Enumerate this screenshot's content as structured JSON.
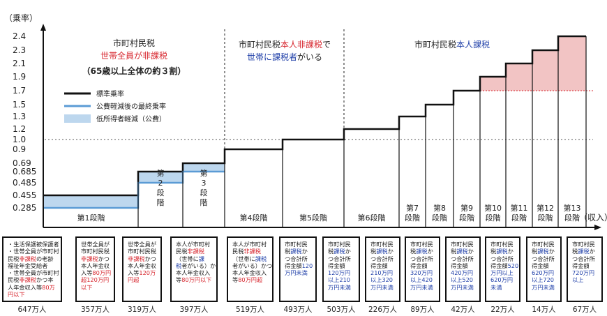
{
  "chart_data": {
    "type": "step",
    "ylabel": "（乗率）",
    "xlabel": "（収入）",
    "y_ticks": [
      "2.4",
      "2.3",
      "2.1",
      "1.9",
      "1.7",
      "1.5",
      "1.3",
      "1.2",
      "1.0",
      "0.9",
      "0.69",
      "0.685",
      "0.485",
      "0.455",
      "0.285"
    ],
    "stages": [
      {
        "label": "第1段階",
        "rate": 0.455,
        "reduced": 0.285,
        "count": "647万人"
      },
      {
        "label": "第\n2\n段\n階",
        "rate": 0.685,
        "reduced": 0.485,
        "count": "357万人"
      },
      {
        "label": "第\n3\n段\n階",
        "rate": 0.69,
        "reduced": 0.685,
        "count": "319万人"
      },
      {
        "label": "第4段階",
        "rate": 0.9,
        "count": "397万人"
      },
      {
        "label": "第5段階",
        "rate": 1.0,
        "count": "519万人"
      },
      {
        "label": "第6段階",
        "rate": 1.2,
        "count": "493万人"
      },
      {
        "label": "第7\n段階",
        "rate": 1.3,
        "count": "503万人"
      },
      {
        "label": "第8\n段階",
        "rate": 1.5,
        "count": "226万人"
      },
      {
        "label": "第9\n段階",
        "rate": 1.7,
        "count": "89万人"
      },
      {
        "label": "第10\n段階",
        "rate": 1.9,
        "count": "42万人"
      },
      {
        "label": "第11\n段階",
        "rate": 2.1,
        "count": "22万人"
      },
      {
        "label": "第12\n段階",
        "rate": 2.3,
        "count": "14万人"
      },
      {
        "label": "第13\n段階",
        "rate": 2.4,
        "count": "67万人"
      }
    ],
    "legend": [
      {
        "label": "標準乗率",
        "color": "#111111"
      },
      {
        "label": "公費軽減後の最終乗率",
        "color": "#5b9bd5"
      },
      {
        "label": "低所得者軽減（公費）",
        "color": "#bdd7ee"
      }
    ],
    "zones": [
      {
        "line1": "市町村民税",
        "line2": "世帯全員が非課税",
        "line3": "（65歳以上全体の約３割）"
      },
      {
        "line1a": "市町村民税",
        "line1b": "本人非課税",
        "line1c": "で",
        "line2a": "世帯に課税者",
        "line2b": "がいる"
      },
      {
        "line1a": "市町村民税",
        "line1b": "本人課税"
      }
    ],
    "colors": {
      "axis": "#111111",
      "high_band": "#f2c4c4",
      "high_band_edge": "#d7262e",
      "reduced_line": "#5b9bd5",
      "reduced_fill": "#bdd7ee"
    }
  },
  "boxes": [
    [
      [
        "・生活保護被保護者",
        "text"
      ],
      [
        "・世帯全員が市町村",
        "text"
      ],
      [
        "民税",
        "text",
        "非課税",
        "red",
        "の老齢",
        "text"
      ],
      [
        "福祉年金受給者",
        "text"
      ],
      [
        "・世帯全員が市町村",
        "text"
      ],
      [
        "民税",
        "text",
        "非課税",
        "red",
        "かつ本",
        "text"
      ],
      [
        "人年金収入等",
        "text",
        "80万",
        "red"
      ],
      [
        "円以下",
        "red"
      ]
    ],
    [
      [
        "世帯全員が",
        "text"
      ],
      [
        "市町村民税",
        "text"
      ],
      [
        "非課税",
        "red",
        "かつ",
        "text"
      ],
      [
        "本人年金収",
        "text"
      ],
      [
        "入等",
        "text",
        "80万円",
        "red"
      ],
      [
        "超120万円",
        "red"
      ],
      [
        "以下",
        "red"
      ]
    ],
    [
      [
        "世帯全員が",
        "text"
      ],
      [
        "市町村民税",
        "text"
      ],
      [
        "非課税",
        "red",
        "かつ",
        "text"
      ],
      [
        "本人年金収",
        "text"
      ],
      [
        "入等",
        "text",
        "120万",
        "red"
      ],
      [
        "円超",
        "red"
      ]
    ],
    [
      [
        "本人が市町村",
        "text"
      ],
      [
        "民税",
        "text",
        "非課税",
        "red"
      ],
      [
        "（世帯に",
        "text",
        "課",
        "blue"
      ],
      [
        "税",
        "blue",
        "者がいる）かつ",
        "text"
      ],
      [
        "本人年金収入",
        "text"
      ],
      [
        "等",
        "text",
        "80万円以下",
        "red"
      ]
    ],
    [
      [
        "本人が市町村",
        "text"
      ],
      [
        "民税",
        "text",
        "非課税",
        "red"
      ],
      [
        "（世帯に",
        "text",
        "課税",
        "blue"
      ],
      [
        "者がいる）",
        "text",
        "かつ",
        "text"
      ],
      [
        "本人年金収入",
        "text"
      ],
      [
        "等",
        "text",
        "80万円超",
        "red"
      ]
    ],
    [
      [
        "市町村民",
        "text"
      ],
      [
        "税",
        "text",
        "課税",
        "blue",
        "か",
        "text"
      ],
      [
        "つ合計所",
        "text"
      ],
      [
        "得金額",
        "text",
        "120",
        "blue"
      ],
      [
        "万円未満",
        "blue"
      ]
    ],
    [
      [
        "市町村民",
        "text"
      ],
      [
        "税",
        "text",
        "課税",
        "blue",
        "か",
        "text"
      ],
      [
        "つ合計所",
        "text"
      ],
      [
        "得金額",
        "text"
      ],
      [
        "120万円",
        "blue"
      ],
      [
        "以上210",
        "blue"
      ],
      [
        "万円未満",
        "blue"
      ]
    ],
    [
      [
        "市町村民",
        "text"
      ],
      [
        "税",
        "text",
        "課税",
        "blue",
        "か",
        "text"
      ],
      [
        "つ合計所",
        "text"
      ],
      [
        "得金額",
        "text"
      ],
      [
        "210万円",
        "blue"
      ],
      [
        "以上320",
        "blue"
      ],
      [
        "万円未満",
        "blue"
      ]
    ],
    [
      [
        "市町村民",
        "text"
      ],
      [
        "税",
        "text",
        "課税",
        "blue",
        "か",
        "text"
      ],
      [
        "つ合計所",
        "text"
      ],
      [
        "得金額",
        "text"
      ],
      [
        "320万円",
        "blue"
      ],
      [
        "以上420",
        "blue"
      ],
      [
        "万円未満",
        "blue"
      ]
    ],
    [
      [
        "市町村民",
        "text"
      ],
      [
        "税",
        "text",
        "課税",
        "blue",
        "か",
        "text"
      ],
      [
        "つ合計所",
        "text"
      ],
      [
        "得金額",
        "text"
      ],
      [
        "420万円",
        "blue"
      ],
      [
        "以上520",
        "blue"
      ],
      [
        "万円未満",
        "blue"
      ]
    ],
    [
      [
        "市町村民",
        "text"
      ],
      [
        "税",
        "text",
        "課税",
        "blue",
        "か",
        "text"
      ],
      [
        "つ合計所",
        "text"
      ],
      [
        "得金額",
        "text",
        "520",
        "blue"
      ],
      [
        "万円以上",
        "blue"
      ],
      [
        "620万円",
        "blue"
      ],
      [
        "未満",
        "blue"
      ]
    ],
    [
      [
        "市町村民",
        "text"
      ],
      [
        "税",
        "text",
        "課税",
        "blue",
        "か",
        "text"
      ],
      [
        "つ合計所",
        "text"
      ],
      [
        "得金額",
        "text"
      ],
      [
        "620万円",
        "blue"
      ],
      [
        "以上720",
        "blue"
      ],
      [
        "万円未満",
        "blue"
      ]
    ],
    [
      [
        "市町村民",
        "text"
      ],
      [
        "税",
        "text",
        "課税",
        "blue",
        "か",
        "text"
      ],
      [
        "つ合計所",
        "text"
      ],
      [
        "得金額",
        "text"
      ],
      [
        "720万円",
        "blue"
      ],
      [
        "以上",
        "blue"
      ]
    ]
  ]
}
